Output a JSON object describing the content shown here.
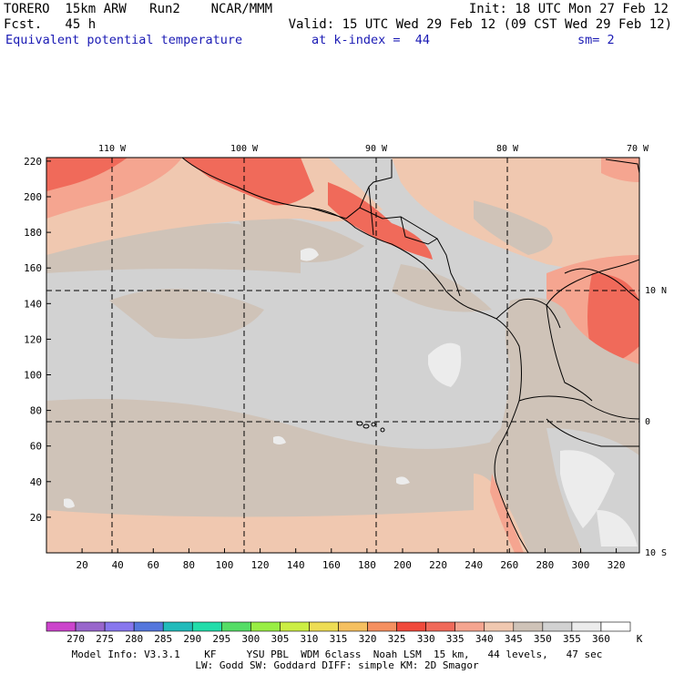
{
  "header": {
    "line1_left": "TORERO  15km ARW   Run2    NCAR/MMM",
    "line1_right": "Init: 18 UTC Mon 27 Feb 12",
    "line2_left": "Fcst.   45 h",
    "line2_right": "Valid: 15 UTC Wed 29 Feb 12 (09 CST Wed 29 Feb 12)",
    "line3_field": "Equivalent potential temperature",
    "line3_level": "at k-index =  44",
    "line3_smooth": "sm= 2"
  },
  "map": {
    "longitude_labels": [
      "110 W",
      "100 W",
      "90 W",
      "80 W",
      "70 W"
    ],
    "latitude_labels": [
      "10 N",
      "0",
      "10 S"
    ],
    "y_grid_labels": [
      "220",
      "200",
      "180",
      "160",
      "140",
      "120",
      "100",
      "80",
      "60",
      "40",
      "20"
    ],
    "x_grid_labels": [
      "20",
      "40",
      "60",
      "80",
      "100",
      "120",
      "140",
      "160",
      "180",
      "200",
      "220",
      "240",
      "260",
      "280",
      "300",
      "320"
    ]
  },
  "colorbar": {
    "labels": [
      "270",
      "275",
      "280",
      "285",
      "290",
      "295",
      "300",
      "305",
      "310",
      "315",
      "320",
      "325",
      "330",
      "335",
      "340",
      "345",
      "350",
      "355",
      "360"
    ],
    "unit": "K",
    "colors": [
      "#cc44cc",
      "#9966cc",
      "#8877ee",
      "#5577dd",
      "#22bbbb",
      "#22ddaa",
      "#55dd66",
      "#99ee44",
      "#ccee44",
      "#eedd55",
      "#f5c060",
      "#f59060",
      "#f04a3c",
      "#f06a5a",
      "#f5a590",
      "#f0c8b0",
      "#cfc3b8",
      "#d2d2d2",
      "#ececec",
      "#ffffff"
    ]
  },
  "footer": {
    "line1": "Model Info: V3.3.1    KF     YSU PBL  WDM 6class  Noah LSM  15 km,   44 levels,   47 sec",
    "line2": "LW: Godd SW: Goddard DIFF: simple KM: 2D Smagor"
  }
}
